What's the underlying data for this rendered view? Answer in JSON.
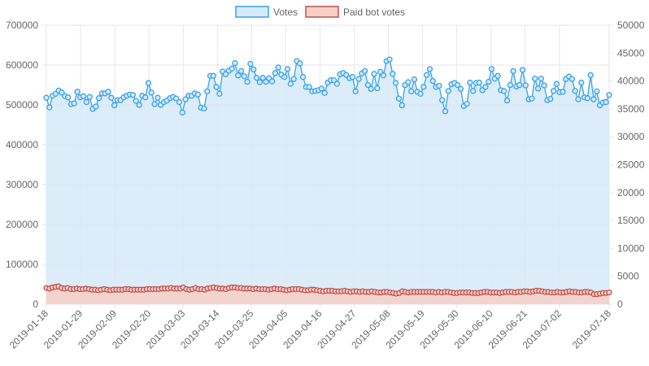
{
  "colors": {
    "votes_line": "#36a2eb",
    "votes_fill": "#d6e9f8",
    "paid_line": "#c0504d",
    "paid_fill": "#f6cfc6",
    "grid": "#e6e6e6",
    "text": "#666666"
  },
  "legend": [
    {
      "label": "Votes",
      "color_key": "votes"
    },
    {
      "label": "Paid bot votes",
      "color_key": "paid"
    }
  ],
  "chart_data": {
    "type": "area",
    "start_date": "2019-01-18",
    "end_date": "2019-07-18",
    "grid": true,
    "legend_position": "top-center",
    "x_tick_labels": [
      "2019-01-18",
      "2019-01-29",
      "2019-02-09",
      "2019-02-20",
      "2019-03-03",
      "2019-03-14",
      "2019-03-25",
      "2019-04-05",
      "2019-04-16",
      "2019-04-27",
      "2019-05-08",
      "2019-05-19",
      "2019-05-30",
      "2019-06-10",
      "2019-06-21",
      "2019-07-02",
      "2019-07-18"
    ],
    "y_left": {
      "min": 0,
      "max": 700000,
      "ticks": [
        "0",
        "100000",
        "200000",
        "300000",
        "400000",
        "500000",
        "600000",
        "700000"
      ]
    },
    "y_right": {
      "min": 0,
      "max": 50000,
      "ticks": [
        "0",
        "5000",
        "10000",
        "15000",
        "20000",
        "25000",
        "30000",
        "35000",
        "40000",
        "45000",
        "50000"
      ]
    },
    "series": [
      {
        "name": "Votes",
        "axis": "left",
        "values": [
          518000,
          494000,
          523000,
          528000,
          536000,
          531000,
          522000,
          519000,
          502000,
          504000,
          533000,
          519000,
          522000,
          507000,
          520000,
          490000,
          496000,
          517000,
          529000,
          529000,
          533000,
          518000,
          499000,
          512000,
          512000,
          519000,
          523000,
          526000,
          525000,
          510000,
          500000,
          523000,
          519000,
          555000,
          531000,
          502000,
          518000,
          500000,
          507000,
          511000,
          517000,
          520000,
          516000,
          507000,
          481000,
          514000,
          523000,
          523000,
          529000,
          526000,
          493000,
          491000,
          534000,
          573000,
          573000,
          545000,
          528000,
          584000,
          577000,
          586000,
          591000,
          605000,
          574000,
          585000,
          572000,
          558000,
          603000,
          589000,
          568000,
          557000,
          568000,
          558000,
          567000,
          559000,
          580000,
          594000,
          576000,
          570000,
          590000,
          553000,
          565000,
          610000,
          604000,
          570000,
          545000,
          545000,
          534000,
          535000,
          537000,
          541000,
          530000,
          556000,
          562000,
          562000,
          553000,
          577000,
          580000,
          575000,
          567000,
          570000,
          534000,
          565000,
          579000,
          585000,
          550000,
          540000,
          578000,
          542000,
          583000,
          574000,
          610000,
          614000,
          578000,
          555000,
          516000,
          499000,
          550000,
          557000,
          534000,
          564000,
          533000,
          528000,
          545000,
          575000,
          590000,
          560000,
          545000,
          548000,
          512000,
          484000,
          535000,
          552000,
          555000,
          550000,
          540000,
          497000,
          503000,
          556000,
          535000,
          555000,
          556000,
          537000,
          545000,
          558000,
          590000,
          566000,
          573000,
          537000,
          535000,
          511000,
          550000,
          585000,
          546000,
          550000,
          588000,
          549000,
          514000,
          516000,
          566000,
          541000,
          566000,
          549000,
          512000,
          515000,
          535000,
          553000,
          532000,
          533000,
          565000,
          571000,
          565000,
          535000,
          514000,
          556000,
          519000,
          517000,
          575000,
          514000,
          534000,
          499000,
          506000,
          507000,
          525000
        ],
        "line_color_key": "votes_line",
        "fill_color_key": "votes_fill"
      },
      {
        "name": "Paid bot votes",
        "axis": "right",
        "values": [
          2900,
          2800,
          3000,
          3100,
          3200,
          2900,
          2800,
          2900,
          2700,
          2700,
          2800,
          2700,
          2700,
          2800,
          2700,
          2600,
          2600,
          2500,
          2600,
          2700,
          2600,
          2500,
          2600,
          2600,
          2600,
          2600,
          2700,
          2700,
          2600,
          2600,
          2600,
          2600,
          2600,
          2700,
          2700,
          2700,
          2700,
          2700,
          2800,
          2800,
          2800,
          2900,
          2800,
          2800,
          2800,
          3000,
          2700,
          2600,
          2700,
          2900,
          2700,
          2700,
          2600,
          2800,
          2900,
          3000,
          2900,
          2800,
          2800,
          2700,
          2900,
          3000,
          3000,
          2900,
          2900,
          2800,
          2800,
          2800,
          2700,
          2800,
          2700,
          2700,
          2700,
          2600,
          2700,
          2800,
          2700,
          2700,
          2600,
          2500,
          2600,
          2700,
          2700,
          2700,
          2600,
          2500,
          2500,
          2600,
          2600,
          2500,
          2400,
          2300,
          2400,
          2400,
          2400,
          2300,
          2300,
          2300,
          2400,
          2300,
          2200,
          2300,
          2300,
          2200,
          2300,
          2200,
          2200,
          2300,
          2200,
          2100,
          2100,
          2200,
          2200,
          2100,
          2000,
          1900,
          2000,
          2300,
          2200,
          2100,
          2200,
          2200,
          2200,
          2200,
          2200,
          2200,
          2200,
          2200,
          2100,
          2200,
          2100,
          2200,
          2200,
          2100,
          2000,
          2000,
          2100,
          2100,
          2100,
          2100,
          2000,
          2000,
          2000,
          2100,
          2200,
          2200,
          2100,
          2100,
          2100,
          2000,
          2100,
          2200,
          2200,
          2200,
          2100,
          2200,
          2200,
          2300,
          2300,
          2200,
          2300,
          2400,
          2400,
          2300,
          2200,
          2200,
          2100,
          2100,
          2200,
          2100,
          2100,
          2200,
          2300,
          2200,
          2200,
          2100,
          2100,
          2200,
          2200,
          2100,
          1800,
          1800,
          1900,
          2000,
          2000,
          2100
        ],
        "line_color_key": "paid_line",
        "fill_color_key": "paid_fill"
      }
    ]
  }
}
